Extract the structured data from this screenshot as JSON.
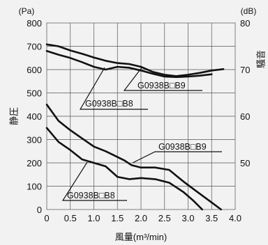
{
  "chart_data": {
    "type": "line",
    "xlabel": "風量(m³/min)",
    "ylabel_left": "静圧",
    "ylabel_right": "騒音",
    "unit_left": "(Pa)",
    "unit_right": "(dB)",
    "xlim": [
      0,
      4.0
    ],
    "ylim": [
      0,
      800
    ],
    "y2lim": [
      40,
      80
    ],
    "grid": true,
    "x_ticks": [
      "0",
      "0.5",
      "1.0",
      "1.5",
      "2.0",
      "2.5",
      "3.0",
      "3.5",
      "4.0"
    ],
    "y_ticks": [
      "0",
      "100",
      "200",
      "300",
      "400",
      "500",
      "600",
      "700",
      "800"
    ],
    "y2_ticks": [
      "50",
      "60",
      "70",
      "80"
    ],
    "series": [
      {
        "name": "G0938B□B9",
        "quantity": "静圧",
        "axis": "left",
        "x": [
          0,
          0.25,
          0.5,
          0.75,
          1.0,
          1.25,
          1.5,
          1.65,
          1.8,
          2.0,
          2.3,
          2.6,
          2.9,
          3.2,
          3.5,
          3.7
        ],
        "y": [
          450,
          380,
          340,
          305,
          270,
          250,
          225,
          210,
          190,
          180,
          180,
          170,
          120,
          75,
          30,
          0
        ]
      },
      {
        "name": "G0938B□B8",
        "quantity": "静圧",
        "axis": "left",
        "x": [
          0,
          0.25,
          0.5,
          0.75,
          1.0,
          1.25,
          1.5,
          1.75,
          2.0,
          2.3,
          2.6,
          2.9,
          3.1,
          3.3
        ],
        "y": [
          350,
          290,
          255,
          215,
          200,
          185,
          140,
          130,
          135,
          130,
          115,
          75,
          40,
          0
        ]
      },
      {
        "name": "G0938B□B9",
        "quantity": "騒音",
        "axis": "right",
        "x": [
          0,
          0.25,
          0.5,
          0.75,
          1.0,
          1.25,
          1.5,
          1.75,
          2.0,
          2.25,
          2.5,
          2.75,
          3.0,
          3.25,
          3.5,
          3.75
        ],
        "y": [
          75.4,
          75.0,
          74.1,
          73.4,
          72.6,
          71.9,
          71.4,
          71.2,
          70.6,
          69.5,
          68.9,
          68.6,
          68.9,
          69.3,
          69.8,
          70.1
        ]
      },
      {
        "name": "G0938B□B8",
        "quantity": "騒音",
        "axis": "right",
        "x": [
          0,
          0.25,
          0.5,
          0.75,
          1.0,
          1.25,
          1.5,
          1.75,
          2.0,
          2.25,
          2.5,
          2.75,
          3.0,
          3.25,
          3.5
        ],
        "y": [
          74.0,
          73.2,
          72.5,
          71.6,
          70.6,
          70.0,
          70.6,
          70.4,
          69.8,
          69.1,
          68.5,
          68.4,
          68.5,
          68.7,
          69.0
        ]
      }
    ],
    "annotations": [
      "G0938B□B9",
      "G0938B□B8",
      "G0938B□B9",
      "G0938B□B8"
    ]
  }
}
